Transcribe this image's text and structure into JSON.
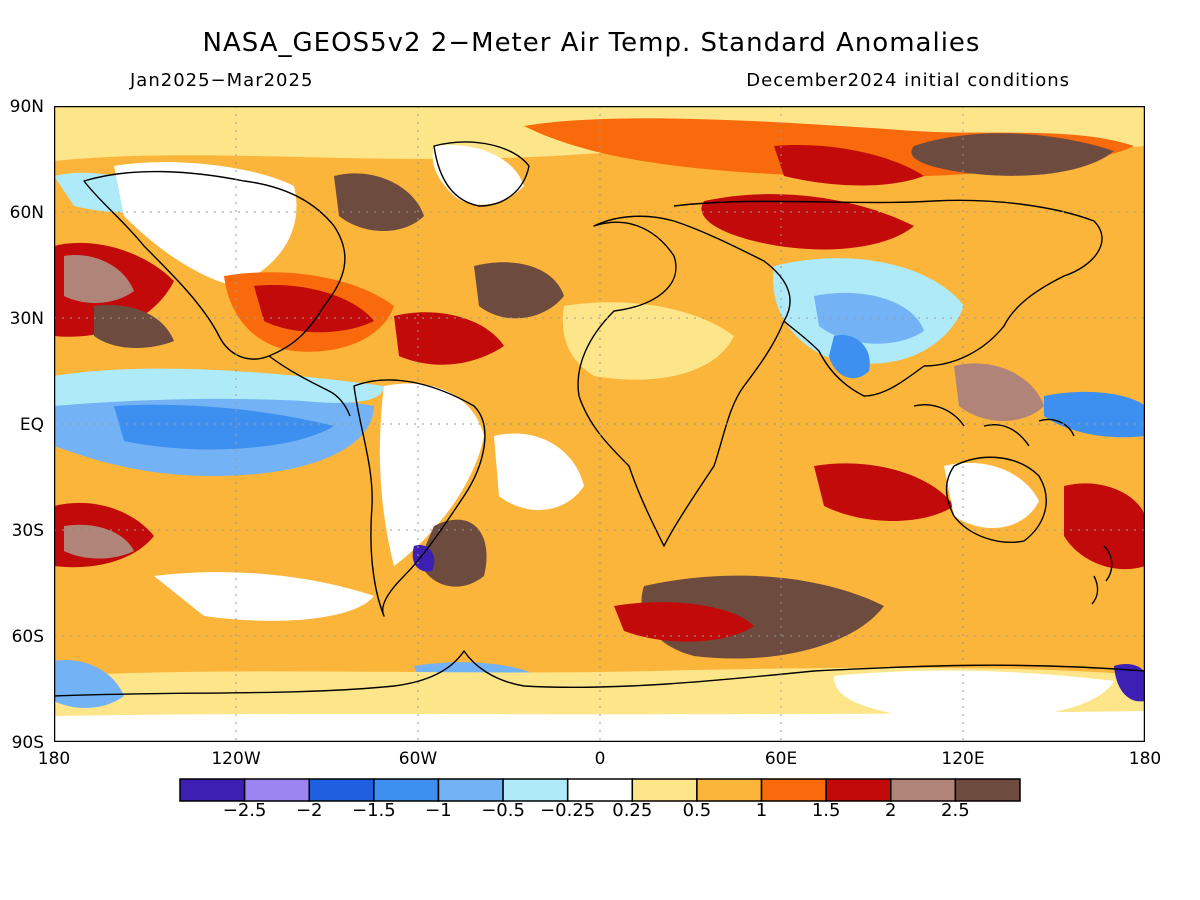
{
  "title": "NASA_GEOS5v2 2−Meter Air Temp. Standard Anomalies",
  "subtitle_left": "Jan2025−Mar2025",
  "subtitle_right": "December2024 initial conditions",
  "lat_labels": [
    "90N",
    "60N",
    "30N",
    "EQ",
    "30S",
    "60S",
    "90S"
  ],
  "lon_labels": [
    "180",
    "120W",
    "60W",
    "0",
    "60E",
    "120E",
    "180"
  ],
  "colorbar": {
    "colors": [
      "#3d1fb3",
      "#9c85f0",
      "#1f5fe0",
      "#3d8ff0",
      "#73b3f5",
      "#aeeaf7",
      "#ffffff",
      "#fde58a",
      "#fbb53a",
      "#f86a0c",
      "#c20a0a",
      "#b08479",
      "#6e4b3f"
    ],
    "labels": [
      "−2.5",
      "−2",
      "−1.5",
      "−1",
      "−0.5",
      "−0.25",
      "0.25",
      "0.5",
      "1",
      "1.5",
      "2",
      "2.5"
    ]
  },
  "colors": {
    "ocean_base": "#fbb53a",
    "coast": "#000000",
    "grid": "#9a9a9a"
  }
}
